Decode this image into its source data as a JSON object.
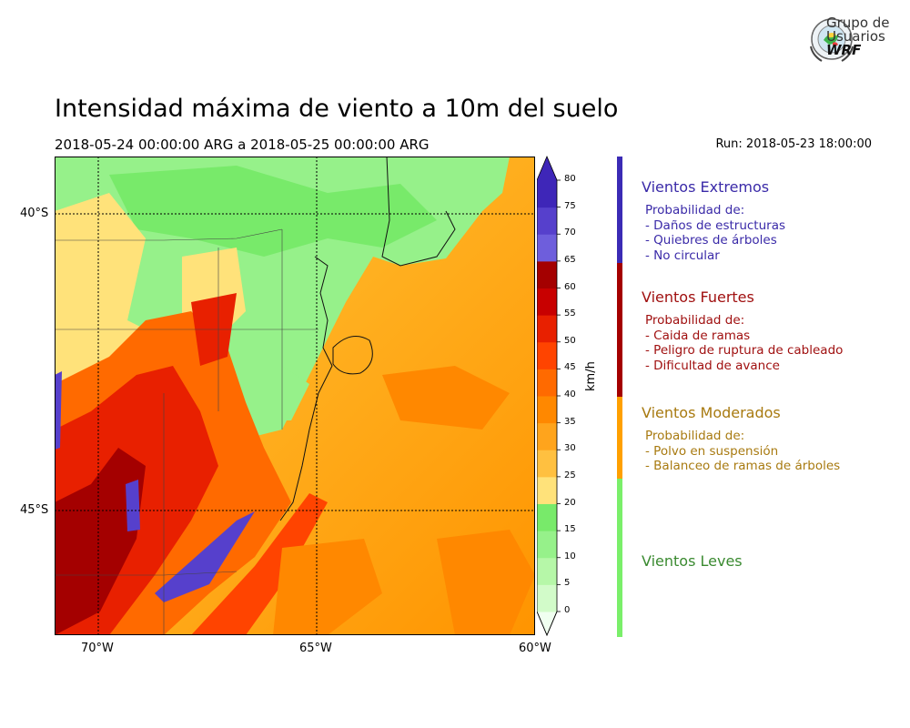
{
  "title": "Intensidad máxima de viento a 10m del suelo",
  "period": "2018-05-24 00:00:00 ARG  a  2018-05-25 00:00:00 ARG",
  "run": "Run: 2018-05-23 18:00:00",
  "logo": {
    "line1": "Grupo de",
    "line2": "Usuarios",
    "line3": "WRF"
  },
  "map": {
    "x_ticks": [
      "70°W",
      "65°W",
      "60°W"
    ],
    "y_ticks": [
      "40°S",
      "45°S"
    ]
  },
  "colorbar": {
    "unit": "km/h",
    "ticks": [
      "0",
      "5",
      "10",
      "15",
      "20",
      "25",
      "30",
      "35",
      "40",
      "45",
      "50",
      "55",
      "60",
      "65",
      "70",
      "75",
      "80"
    ],
    "colors": [
      "#f0fff0",
      "#d2fbc9",
      "#b6f7a8",
      "#96f18a",
      "#78ea6a",
      "#ffe27a",
      "#ffc040",
      "#ffa41c",
      "#ff8800",
      "#ff6a00",
      "#ff4400",
      "#e82000",
      "#c80000",
      "#a40000",
      "#6e5edc",
      "#5640cc",
      "#3e26b8"
    ],
    "over_color": "#3e26b8"
  },
  "categories": [
    {
      "title": "Vientos Extremos",
      "color": "#3a2aa8",
      "bar_color": "#3b2bb5",
      "lines": [
        "Probabilidad de:",
        "- Daños de estructuras",
        "- Quiebres de árboles",
        "- No circular"
      ]
    },
    {
      "title": "Vientos Fuertes",
      "color": "#a01010",
      "bar_color": "#a40000",
      "lines": [
        "Probabilidad de:",
        "- Caida de ramas",
        "- Peligro de ruptura de cableado",
        "- Dificultad de avance"
      ]
    },
    {
      "title": "Vientos Moderados",
      "color": "#a87a10",
      "bar_color": "#ffa000",
      "lines": [
        "Probabilidad de:",
        "- Polvo en suspensión",
        "- Balanceo de ramas de árboles"
      ]
    },
    {
      "title": "Vientos Leves",
      "color": "#3a8a30",
      "bar_color": "#7aef6a",
      "lines": []
    }
  ]
}
